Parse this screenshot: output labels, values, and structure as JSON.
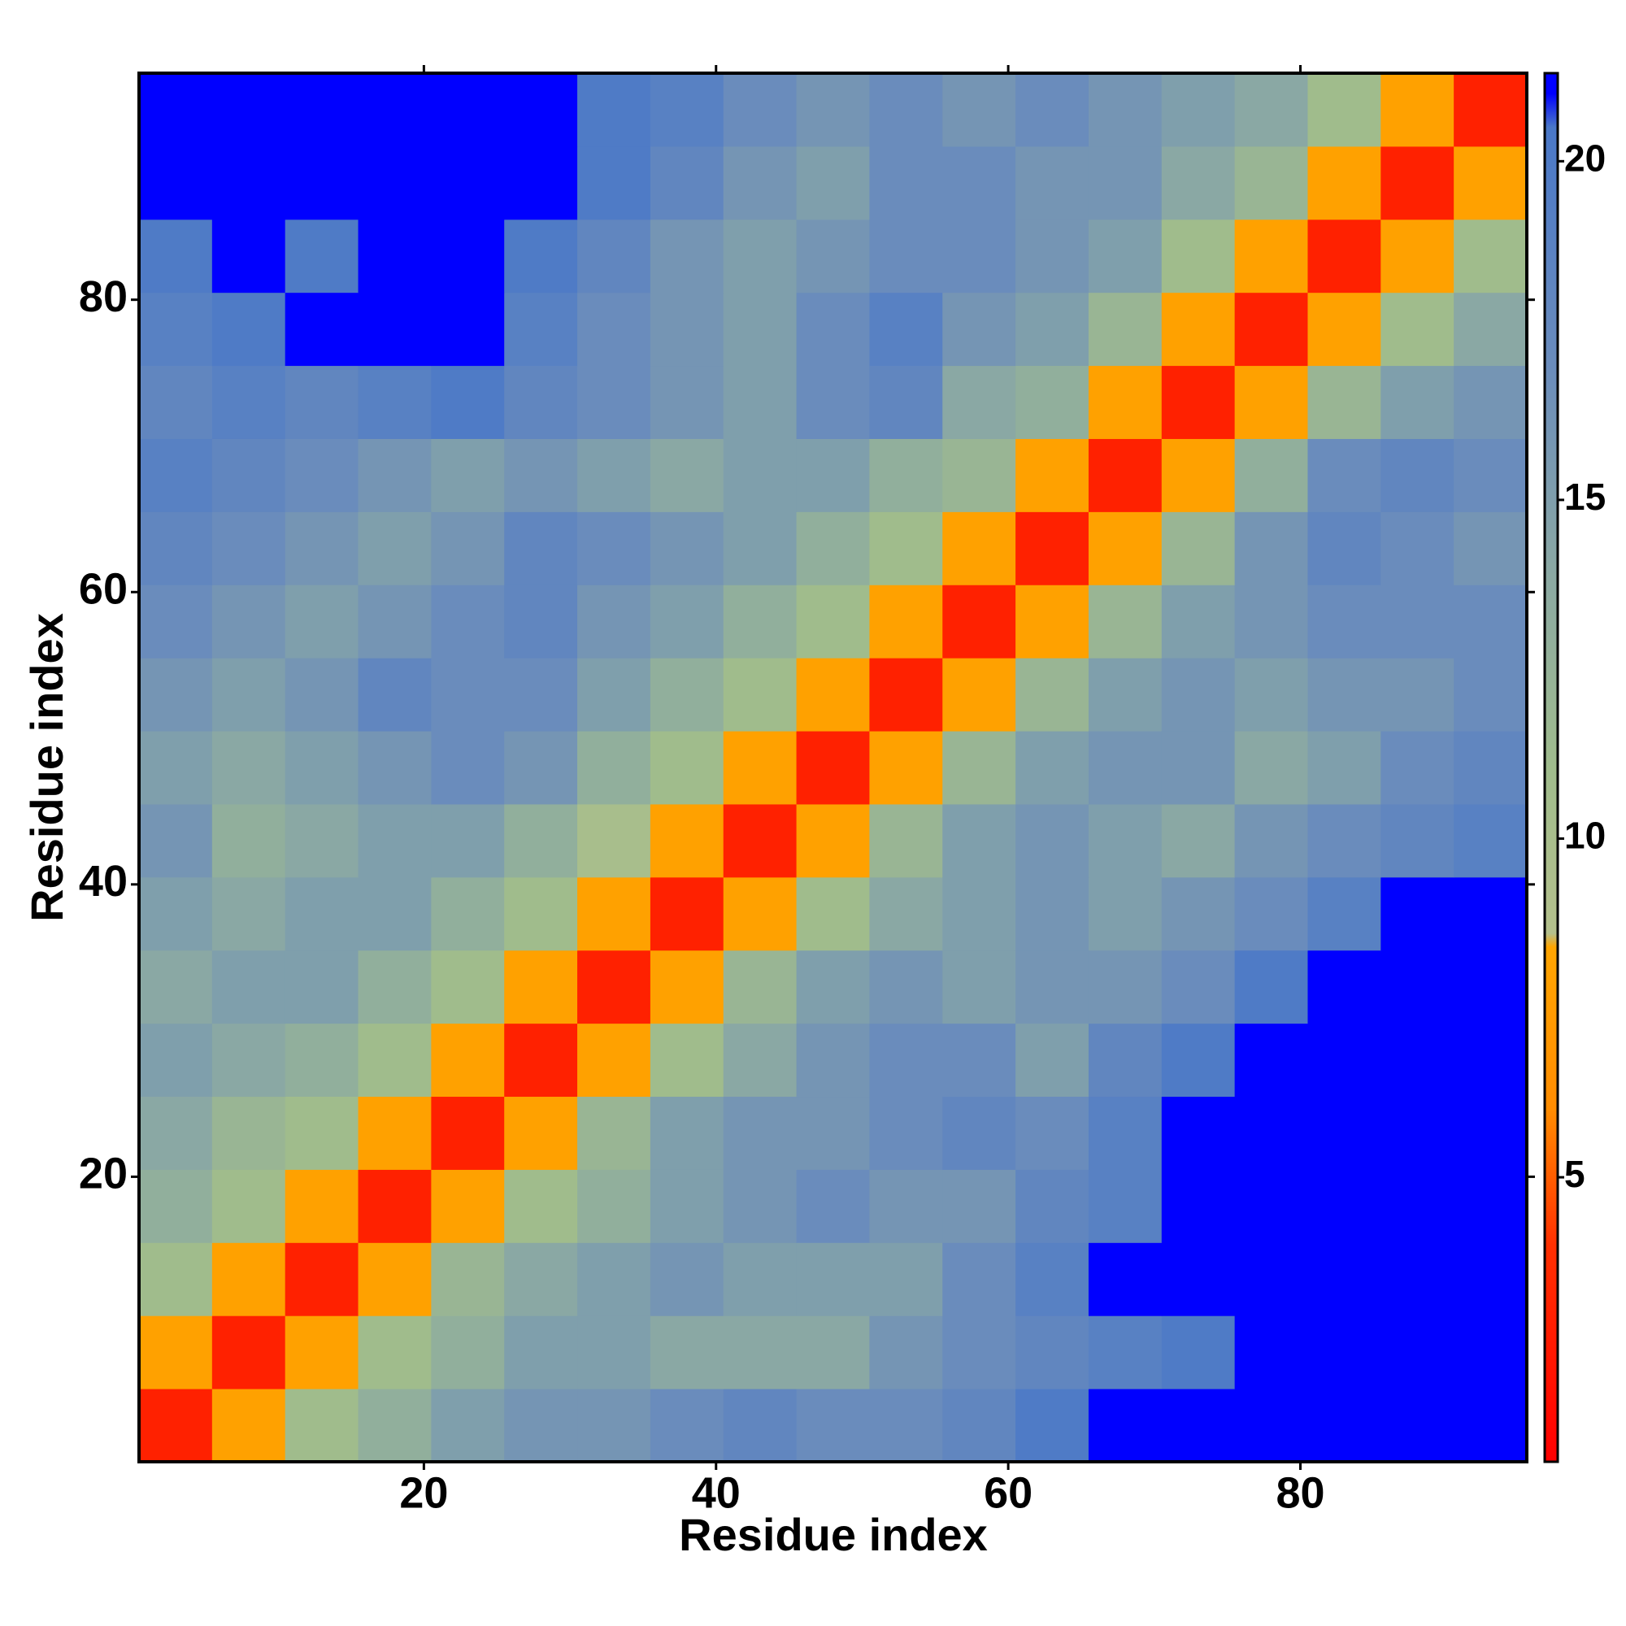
{
  "chart_data": {
    "type": "heatmap",
    "xlabel": "Residue index",
    "ylabel": "Residue index",
    "x_bins": [
      0.5,
      5.5,
      10.5,
      15.5,
      20.5,
      25.5,
      30.5,
      35.5,
      40.5,
      45.5,
      50.5,
      55.5,
      60.5,
      65.5,
      70.5,
      75.5,
      80.5,
      85.5,
      90.5,
      95.5
    ],
    "y_bins": [
      0.5,
      5.5,
      10.5,
      15.5,
      20.5,
      25.5,
      30.5,
      35.5,
      40.5,
      45.5,
      50.5,
      55.5,
      60.5,
      65.5,
      70.5,
      75.5,
      80.5,
      85.5,
      90.5,
      95.5
    ],
    "z": [
      [
        3,
        8,
        11,
        13,
        15,
        16,
        16,
        17,
        18,
        17,
        17,
        18,
        20,
        21,
        21,
        21,
        21,
        21,
        21
      ],
      [
        8,
        3,
        8,
        11,
        13,
        15,
        15,
        14,
        14,
        14,
        16,
        17,
        18,
        19,
        20,
        21,
        21,
        21,
        21
      ],
      [
        11,
        8,
        3,
        8,
        12,
        14,
        15,
        16,
        15,
        15,
        15,
        17,
        19,
        21,
        21,
        21,
        21,
        21,
        21
      ],
      [
        13,
        11,
        8,
        3,
        8,
        11,
        13,
        15,
        16,
        17,
        16,
        16,
        18,
        19,
        21,
        21,
        21,
        21,
        21
      ],
      [
        14,
        12,
        11,
        8,
        3,
        8,
        12,
        15,
        16,
        16,
        17,
        18,
        17,
        19,
        21,
        21,
        21,
        21,
        21
      ],
      [
        15,
        14,
        13,
        11,
        8,
        3,
        8,
        11,
        14,
        16,
        17,
        17,
        15,
        18,
        20,
        21,
        21,
        21,
        21
      ],
      [
        14,
        15,
        15,
        13,
        11,
        8,
        3,
        8,
        12,
        15,
        16,
        15,
        16,
        16,
        17,
        20,
        21,
        21,
        21
      ],
      [
        15,
        14,
        15,
        15,
        13,
        11,
        8,
        3,
        8,
        11,
        14,
        15,
        16,
        15,
        16,
        17,
        19,
        21,
        21
      ],
      [
        16,
        13,
        14,
        15,
        15,
        13,
        10,
        8,
        3,
        8,
        12,
        15,
        16,
        15,
        14,
        16,
        17,
        18,
        19
      ],
      [
        15,
        14,
        15,
        16,
        17,
        16,
        13,
        11,
        8,
        3,
        8,
        12,
        15,
        16,
        16,
        14,
        15,
        17,
        18
      ],
      [
        16,
        15,
        16,
        18,
        17,
        17,
        15,
        13,
        11,
        8,
        3,
        8,
        12,
        15,
        16,
        15,
        16,
        16,
        17
      ],
      [
        17,
        16,
        15,
        16,
        17,
        18,
        16,
        15,
        13,
        11,
        8,
        3,
        8,
        12,
        15,
        16,
        17,
        17,
        17
      ],
      [
        18,
        17,
        16,
        15,
        16,
        18,
        17,
        16,
        15,
        13,
        11,
        8,
        3,
        8,
        12,
        16,
        18,
        17,
        16
      ],
      [
        19,
        18,
        17,
        16,
        15,
        16,
        15,
        14,
        15,
        15,
        13,
        12,
        8,
        3,
        8,
        13,
        17,
        18,
        17
      ],
      [
        18,
        19,
        18,
        19,
        20,
        18,
        17,
        16,
        15,
        17,
        18,
        14,
        13,
        8,
        3,
        8,
        12,
        15,
        16
      ],
      [
        19,
        20,
        21,
        21,
        21,
        19,
        17,
        16,
        15,
        17,
        19,
        16,
        15,
        12,
        8,
        3,
        8,
        11,
        14
      ],
      [
        20,
        21,
        20,
        21,
        21,
        20,
        18,
        16,
        15,
        16,
        17,
        17,
        16,
        15,
        11,
        8,
        3,
        8,
        11
      ],
      [
        21,
        21,
        21,
        21,
        21,
        21,
        20,
        18,
        16,
        15,
        17,
        17,
        16,
        16,
        14,
        12,
        8,
        3,
        8
      ],
      [
        21,
        21,
        21,
        21,
        21,
        21,
        20,
        19,
        17,
        16,
        17,
        16,
        17,
        16,
        15,
        14,
        11,
        8,
        3
      ]
    ],
    "xlim": [
      0.5,
      95.5
    ],
    "ylim": [
      0.5,
      95.5
    ],
    "xticks": [
      20,
      40,
      60,
      80
    ],
    "yticks": [
      20,
      40,
      60,
      80
    ],
    "clim": [
      0.8,
      21.3
    ],
    "cticks": [
      5,
      10,
      15,
      20
    ],
    "colorscale": [
      {
        "value": 0.8,
        "color": "#ff0000"
      },
      {
        "value": 4,
        "color": "#ff3000"
      },
      {
        "value": 6,
        "color": "#ff8c00"
      },
      {
        "value": 8.4,
        "color": "#ffa500"
      },
      {
        "value": 8.6,
        "color": "#b4c08c"
      },
      {
        "value": 11,
        "color": "#a0bc8c"
      },
      {
        "value": 14,
        "color": "#8aa8a4"
      },
      {
        "value": 17,
        "color": "#6a8cbc"
      },
      {
        "value": 20.5,
        "color": "#4a78c8"
      },
      {
        "value": 21,
        "color": "#0000ff"
      },
      {
        "value": 21.3,
        "color": "#0000ff"
      }
    ]
  }
}
